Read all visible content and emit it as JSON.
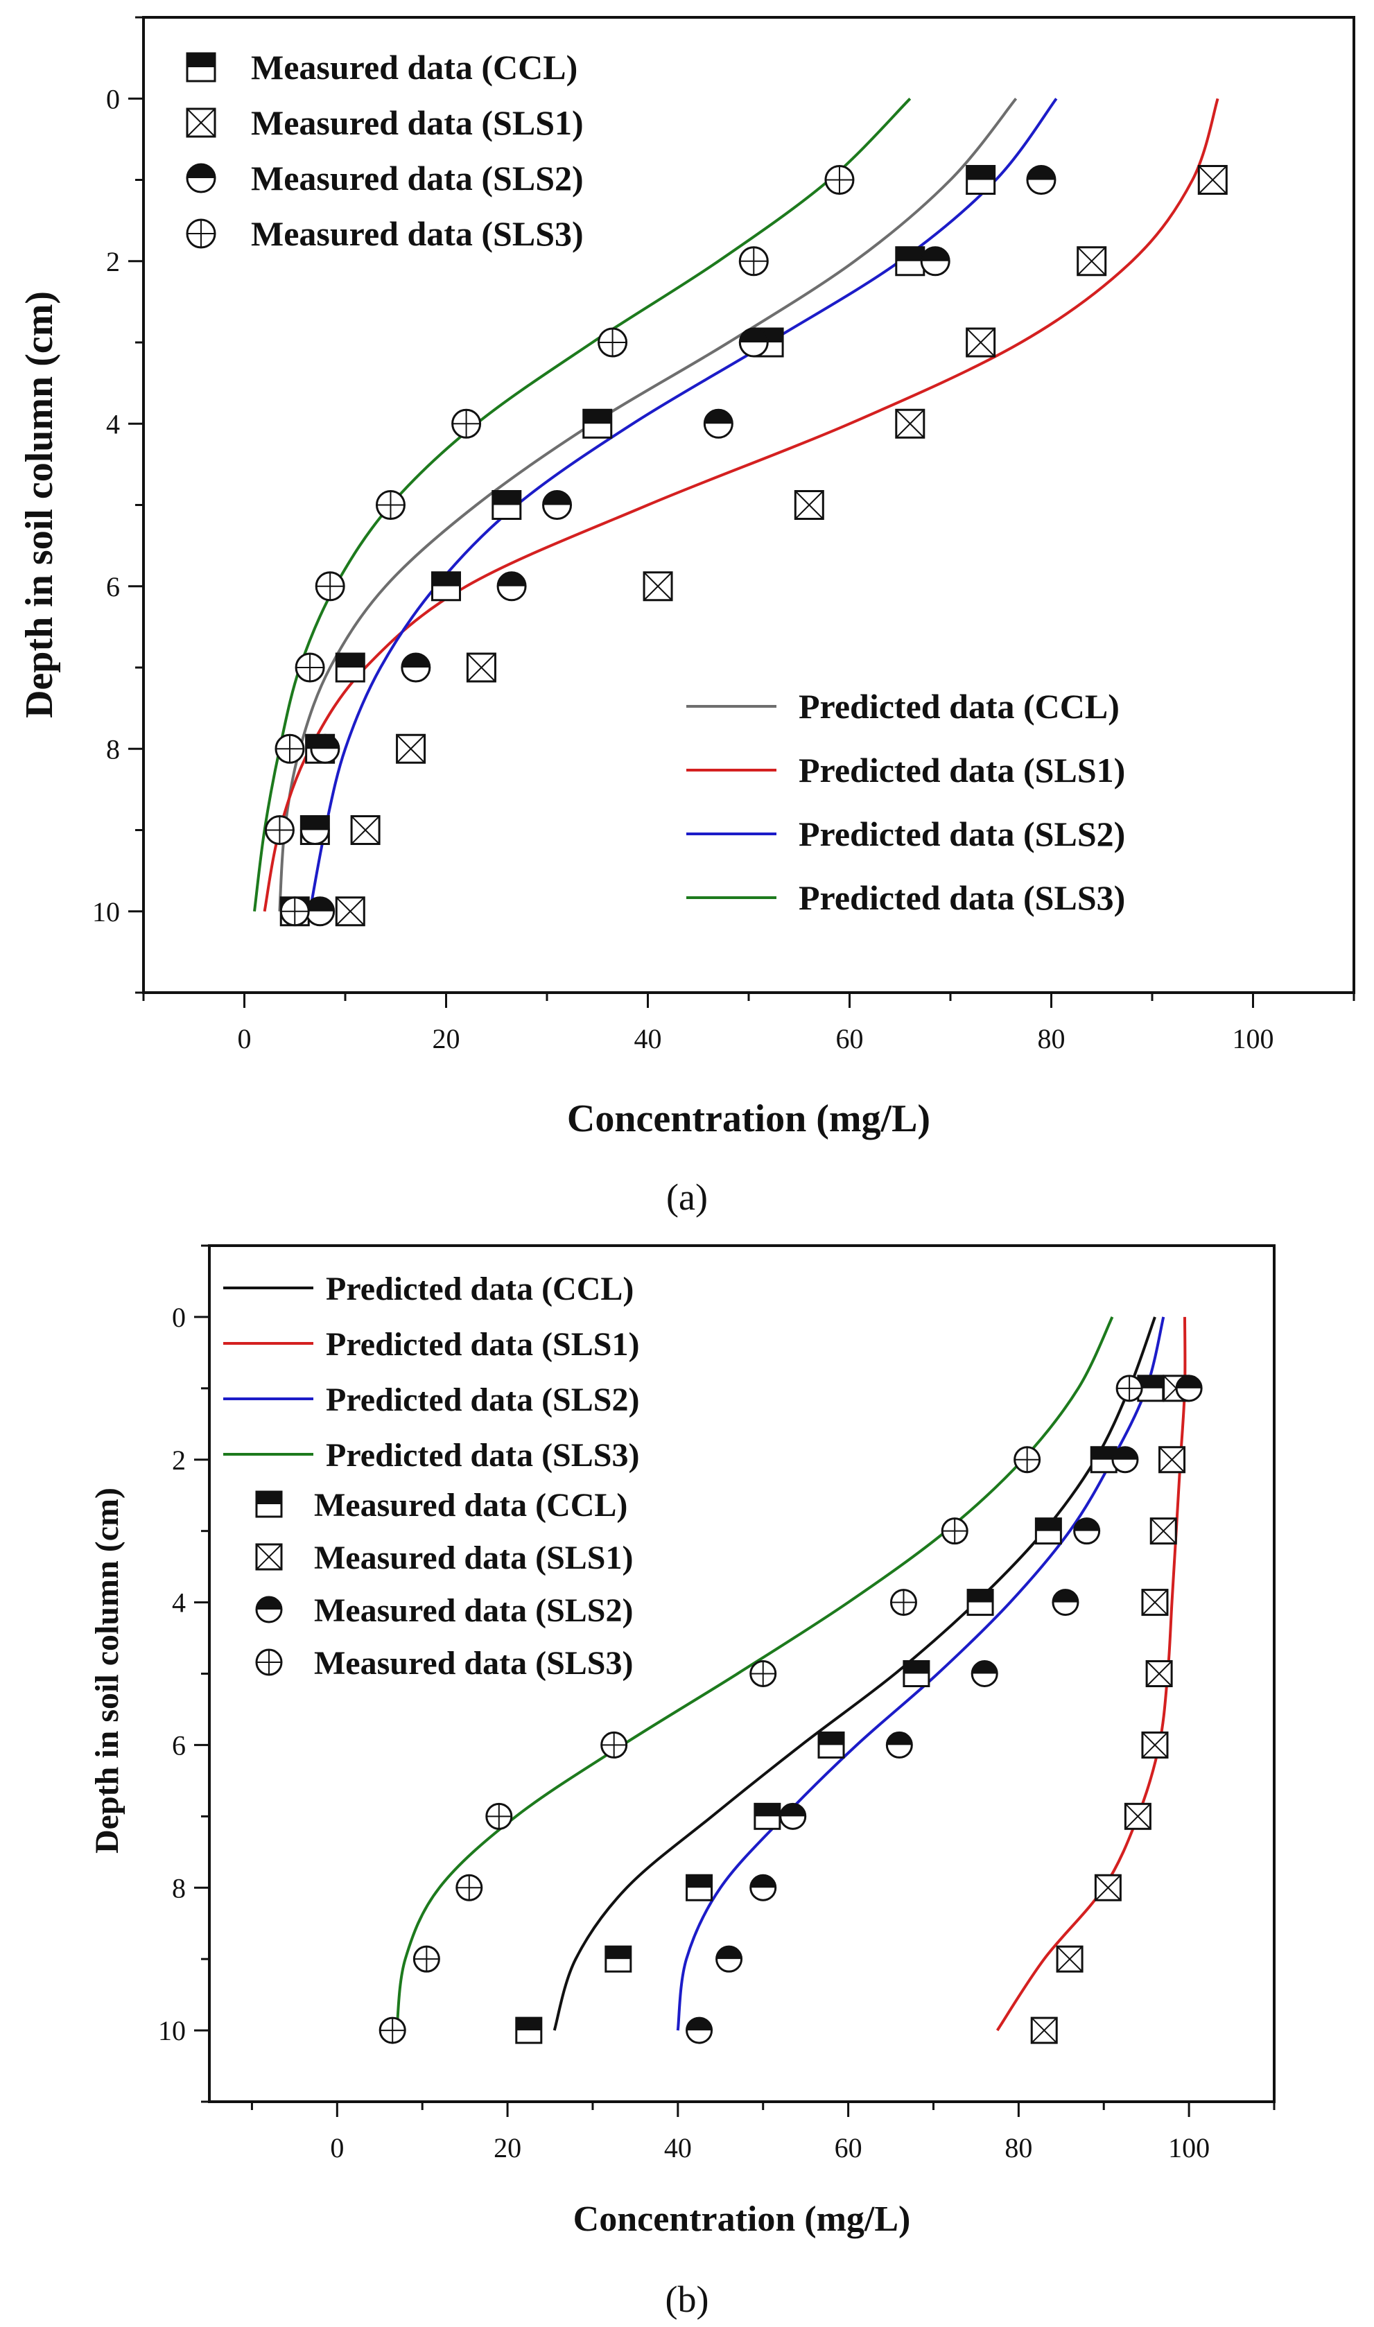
{
  "chart_data": [
    {
      "type": "scatter",
      "panel": "a",
      "caption": "(a)",
      "xlabel": "Concentration (mg/L)",
      "ylabel": "Depth in soil column (cm)",
      "xlim": [
        -10,
        110
      ],
      "ylim": [
        -1,
        11
      ],
      "y_inverted": true,
      "xticks": [
        0,
        20,
        40,
        60,
        80,
        100
      ],
      "yticks": [
        0,
        2,
        4,
        6,
        8,
        10
      ],
      "grid": false,
      "measured": [
        {
          "name": "Measured data (CCL)",
          "marker": "square-half",
          "depth": [
            1,
            2,
            3,
            4,
            5,
            6,
            7,
            8,
            9,
            10
          ],
          "values": [
            73,
            66,
            52,
            35,
            26,
            20,
            10.5,
            7.5,
            7,
            5
          ]
        },
        {
          "name": "Measured data (SLS1)",
          "marker": "square-x",
          "depth": [
            1,
            2,
            3,
            4,
            5,
            6,
            7,
            8,
            9,
            10
          ],
          "values": [
            96,
            84,
            73,
            66,
            56,
            41,
            23.5,
            16.5,
            12,
            10.5
          ]
        },
        {
          "name": "Measured data (SLS2)",
          "marker": "circle-half",
          "depth": [
            1,
            2,
            3,
            4,
            5,
            6,
            7,
            8,
            9,
            10
          ],
          "values": [
            79,
            68.5,
            50.5,
            47,
            31,
            26.5,
            17,
            8,
            7,
            7.5
          ]
        },
        {
          "name": "Measured data (SLS3)",
          "marker": "circle-plus",
          "depth": [
            1,
            2,
            3,
            4,
            5,
            6,
            7,
            8,
            9,
            10
          ],
          "values": [
            59,
            50.5,
            36.5,
            22,
            14.5,
            8.5,
            6.5,
            4.5,
            3.5,
            5
          ]
        }
      ],
      "predicted": [
        {
          "name": "Predicted data (CCL)",
          "color": "#6e6e6e",
          "depth": [
            0,
            1,
            2,
            3,
            4,
            5,
            6,
            7,
            8,
            9,
            10
          ],
          "values": [
            76.5,
            70,
            60.5,
            48,
            34.5,
            23,
            14,
            8.5,
            5.5,
            4,
            3.5
          ]
        },
        {
          "name": "Predicted data (SLS1)",
          "color": "#d42020",
          "depth": [
            0,
            1,
            2,
            3,
            4,
            5,
            6,
            7,
            8,
            9,
            10
          ],
          "values": [
            96.5,
            94,
            88,
            77,
            60,
            40,
            22,
            12,
            6.5,
            3.5,
            2
          ]
        },
        {
          "name": "Predicted data (SLS2)",
          "color": "#1c1cc8",
          "depth": [
            0,
            1,
            2,
            3,
            4,
            5,
            6,
            7,
            8,
            9,
            10
          ],
          "values": [
            80.5,
            74.5,
            65,
            52,
            38.5,
            27,
            19,
            13.5,
            10,
            8,
            6.5
          ]
        },
        {
          "name": "Predicted data (SLS3)",
          "color": "#1d7a1d",
          "depth": [
            0,
            1,
            2,
            3,
            4,
            5,
            6,
            7,
            8,
            9,
            10
          ],
          "values": [
            66,
            58,
            47,
            34.5,
            23,
            14.5,
            9,
            5.5,
            3.5,
            2,
            1
          ]
        }
      ]
    },
    {
      "type": "scatter",
      "panel": "b",
      "caption": "(b)",
      "xlabel": "Concentration (mg/L)",
      "ylabel": "Depth in soil column (cm)",
      "xlim": [
        -15,
        110
      ],
      "ylim": [
        -1,
        11
      ],
      "y_inverted": true,
      "xticks": [
        0,
        20,
        40,
        60,
        80,
        100
      ],
      "yticks": [
        0,
        2,
        4,
        6,
        8,
        10
      ],
      "grid": false,
      "predicted": [
        {
          "name": "Predicted data (CCL)",
          "color": "#111111",
          "depth": [
            0,
            1,
            2,
            3,
            4,
            5,
            6,
            7,
            8,
            9,
            10
          ],
          "values": [
            96,
            93,
            89,
            83,
            75,
            65.5,
            54.5,
            44,
            34,
            28,
            25.5
          ]
        },
        {
          "name": "Predicted data (SLS1)",
          "color": "#d42020",
          "depth": [
            0,
            1,
            2,
            3,
            4,
            5,
            6,
            7,
            8,
            9,
            10
          ],
          "values": [
            99.5,
            99.5,
            99,
            98.5,
            98,
            97.5,
            96.5,
            94,
            90,
            83,
            77.5
          ]
        },
        {
          "name": "Predicted data (SLS2)",
          "color": "#1c1cc8",
          "depth": [
            0,
            1,
            2,
            3,
            4,
            5,
            6,
            7,
            8,
            9,
            10
          ],
          "values": [
            97,
            95,
            91,
            86,
            79,
            70.5,
            61,
            52.5,
            45,
            41,
            40
          ]
        },
        {
          "name": "Predicted data (SLS3)",
          "color": "#1d7a1d",
          "depth": [
            0,
            1,
            2,
            3,
            4,
            5,
            6,
            7,
            8,
            9,
            10
          ],
          "values": [
            91,
            87,
            80.5,
            71.5,
            60,
            47,
            33.5,
            21,
            12,
            8,
            7
          ]
        }
      ],
      "measured": [
        {
          "name": "Measured data (CCL)",
          "marker": "square-half",
          "depth": [
            1,
            2,
            3,
            4,
            5,
            6,
            7,
            8,
            9,
            10
          ],
          "values": [
            95.5,
            90,
            83.5,
            75.5,
            68,
            58,
            50.5,
            42.5,
            33,
            22.5
          ]
        },
        {
          "name": "Measured data (SLS1)",
          "marker": "square-x",
          "depth": [
            1,
            2,
            3,
            4,
            5,
            6,
            7,
            8,
            9,
            10
          ],
          "values": [
            98.5,
            98,
            97,
            96,
            96.5,
            96,
            94,
            90.5,
            86,
            83
          ]
        },
        {
          "name": "Measured data (SLS2)",
          "marker": "circle-half",
          "depth": [
            1,
            2,
            3,
            4,
            5,
            6,
            7,
            8,
            9,
            10
          ],
          "values": [
            100,
            92.5,
            88,
            85.5,
            76,
            66,
            53.5,
            50,
            46,
            42.5
          ]
        },
        {
          "name": "Measured data (SLS3)",
          "marker": "circle-plus",
          "depth": [
            1,
            2,
            3,
            4,
            5,
            6,
            7,
            8,
            9,
            10
          ],
          "values": [
            93,
            81,
            72.5,
            66.5,
            50,
            32.5,
            19,
            15.5,
            10.5,
            6.5
          ]
        }
      ]
    }
  ]
}
